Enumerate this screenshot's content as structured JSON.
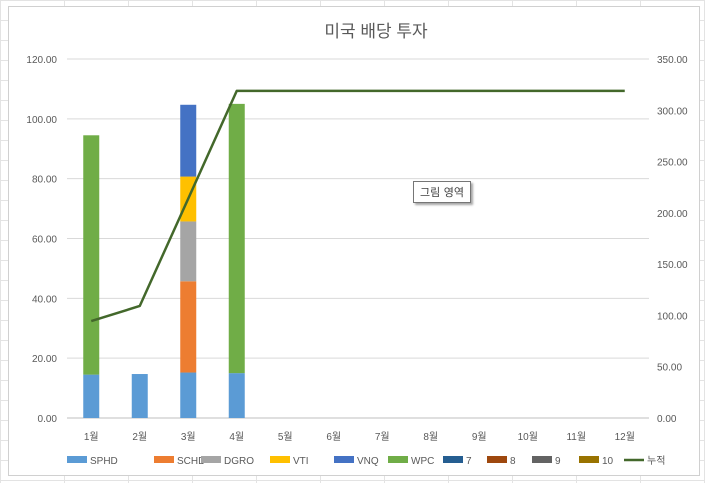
{
  "chart_data": {
    "type": "bar",
    "title": "미국 배당 투자",
    "categories": [
      "1월",
      "2월",
      "3월",
      "4월",
      "5월",
      "6월",
      "7월",
      "8월",
      "9월",
      "10월",
      "11월",
      "12월"
    ],
    "y_left": {
      "min": 0,
      "max": 120,
      "step": 20,
      "ticks": [
        "0.00",
        "20.00",
        "40.00",
        "60.00",
        "80.00",
        "100.00",
        "120.00"
      ]
    },
    "y_right": {
      "min": 0,
      "max": 350,
      "step": 50,
      "ticks": [
        "0.00",
        "50.00",
        "100.00",
        "150.00",
        "200.00",
        "250.00",
        "300.00",
        "350.00"
      ]
    },
    "grid": true,
    "legend_position": "bottom",
    "series": [
      {
        "name": "SPHD",
        "kind": "bar",
        "color": "#5B9BD5",
        "values": [
          14.5,
          14.7,
          15.2,
          15.0,
          0,
          0,
          0,
          0,
          0,
          0,
          0,
          0
        ]
      },
      {
        "name": "SCHD",
        "kind": "bar",
        "color": "#ED7D31",
        "values": [
          0,
          0,
          30.5,
          0,
          0,
          0,
          0,
          0,
          0,
          0,
          0,
          0
        ]
      },
      {
        "name": "DGRO",
        "kind": "bar",
        "color": "#A5A5A5",
        "values": [
          0,
          0,
          20.0,
          0,
          0,
          0,
          0,
          0,
          0,
          0,
          0,
          0
        ]
      },
      {
        "name": "VTI",
        "kind": "bar",
        "color": "#FFC000",
        "values": [
          0,
          0,
          15.0,
          0,
          0,
          0,
          0,
          0,
          0,
          0,
          0,
          0
        ]
      },
      {
        "name": "VNQ",
        "kind": "bar",
        "color": "#4472C4",
        "values": [
          0,
          0,
          24.0,
          0,
          0,
          0,
          0,
          0,
          0,
          0,
          0,
          0
        ]
      },
      {
        "name": "WPC",
        "kind": "bar",
        "color": "#70AD47",
        "values": [
          80.0,
          0,
          0,
          90.0,
          0,
          0,
          0,
          0,
          0,
          0,
          0,
          0
        ]
      },
      {
        "name": "7",
        "kind": "bar",
        "color": "#255E91",
        "values": [
          0,
          0,
          0,
          0,
          0,
          0,
          0,
          0,
          0,
          0,
          0,
          0
        ]
      },
      {
        "name": "8",
        "kind": "bar",
        "color": "#9E480E",
        "values": [
          0,
          0,
          0,
          0,
          0,
          0,
          0,
          0,
          0,
          0,
          0,
          0
        ]
      },
      {
        "name": "9",
        "kind": "bar",
        "color": "#636363",
        "values": [
          0,
          0,
          0,
          0,
          0,
          0,
          0,
          0,
          0,
          0,
          0,
          0
        ]
      },
      {
        "name": "10",
        "kind": "bar",
        "color": "#997300",
        "values": [
          0,
          0,
          0,
          0,
          0,
          0,
          0,
          0,
          0,
          0,
          0,
          0
        ]
      },
      {
        "name": "누적",
        "kind": "line",
        "axis": "right",
        "color": "#43682B",
        "values": [
          94.5,
          109.2,
          213.9,
          318.9,
          318.9,
          318.9,
          318.9,
          318.9,
          318.9,
          318.9,
          318.9,
          318.9
        ]
      }
    ]
  },
  "tooltip": {
    "text": "그림 영역"
  }
}
